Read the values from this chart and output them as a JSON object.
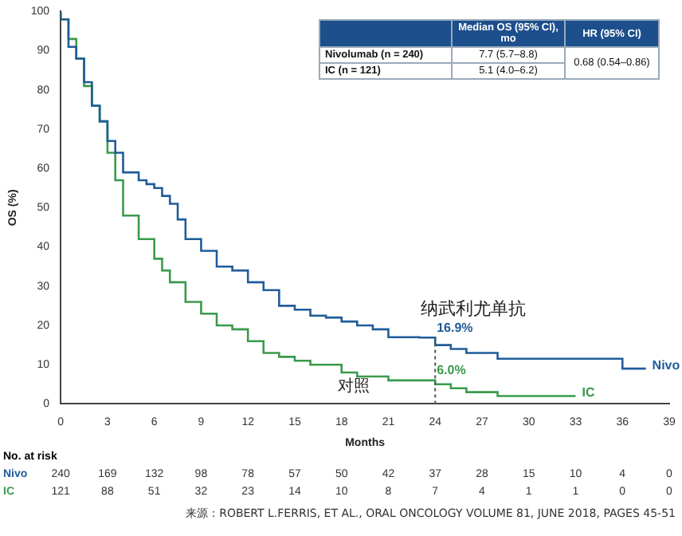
{
  "chart_data": {
    "type": "step",
    "xlabel": "Months",
    "ylabel": "OS (%)",
    "xlim": [
      0,
      39
    ],
    "xticks": [
      0,
      3,
      6,
      9,
      12,
      15,
      18,
      21,
      24,
      27,
      30,
      33,
      36,
      39
    ],
    "ylim": [
      0,
      100
    ],
    "yticks": [
      0,
      10,
      20,
      30,
      40,
      50,
      60,
      70,
      80,
      90,
      100
    ],
    "grid": false,
    "legend": false,
    "series": [
      {
        "name": "Nivo",
        "color": "#1f5c99",
        "x": [
          0,
          0.5,
          1,
          1.5,
          2,
          2.5,
          3,
          3.5,
          4,
          5,
          5.5,
          6,
          6.5,
          7,
          7.5,
          8,
          9,
          10,
          11,
          12,
          13,
          14,
          15,
          16,
          17,
          18,
          19,
          20,
          21,
          22,
          23,
          24,
          25,
          26,
          27,
          28,
          29,
          30,
          33,
          36,
          36.3,
          37.5
        ],
        "values": [
          100,
          98,
          91,
          88,
          82,
          76,
          72,
          67,
          64,
          59,
          57,
          56,
          55,
          53,
          51,
          47,
          42,
          39,
          35,
          34,
          31,
          29,
          25,
          24,
          22.5,
          22,
          21,
          20,
          19,
          17,
          17,
          16.9,
          15,
          14,
          13,
          13,
          11.5,
          11.5,
          11.5,
          11.5,
          9,
          9
        ]
      },
      {
        "name": "IC",
        "color": "#3a9a4c",
        "x": [
          0,
          0.5,
          1,
          1.5,
          2,
          2.5,
          3,
          3.5,
          4,
          5,
          6,
          6.5,
          7,
          8,
          9,
          10,
          11,
          12,
          13,
          14,
          15,
          16,
          17,
          18,
          19,
          20,
          21,
          22,
          23,
          24,
          25,
          26,
          27,
          28,
          29,
          33
        ],
        "values": [
          100,
          98,
          93,
          88,
          81,
          76,
          72,
          64,
          57,
          48,
          42,
          37,
          34,
          31,
          26,
          23,
          20,
          19,
          16,
          13,
          12,
          11,
          10,
          10,
          8,
          7,
          7,
          6,
          6,
          6,
          5,
          4,
          3,
          3,
          2,
          2
        ]
      }
    ],
    "ref_lines": [
      {
        "axis": "x",
        "value": 24,
        "line_style": "dotted"
      }
    ],
    "annotations": [
      {
        "text": "16.9%",
        "x": 24,
        "y": 16.9
      },
      {
        "text": "6.0%",
        "x": 24,
        "y": 6
      },
      "Median OS (95% CI), mo",
      "HR (95% CI)",
      "Nivolumab (n = 240)",
      "7.7 (5.7–8.8)",
      "0.68 (0.54–0.86)",
      "IC (n = 121)",
      "5.1 (4.0–6.2)",
      "No. at risk",
      "240 169 132 98 78 57 50 42 37 28 15 10 4 0",
      "121 88 51 32 23 14 10 8 7 4 1 1 0 0",
      "来源：ROBERT L.FERRIS, ET AL., ORAL ONCOLOGY VOLUME 81, JUNE 2018, PAGES 45-51",
      "纳武利尤单抗",
      "对照"
    ]
  }
}
